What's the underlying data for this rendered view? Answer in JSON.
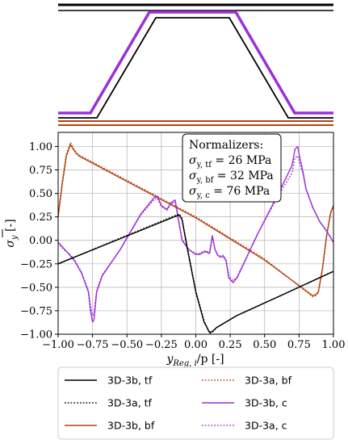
{
  "colors": {
    "tf": "#000000",
    "bf": "#b7410e",
    "c": "#9b30d9",
    "grid": "#b0b0b0"
  },
  "profile": {
    "lines": [
      "tf",
      "bf",
      "c"
    ]
  },
  "normalizers": {
    "title": "Normalizers:",
    "lines": [
      {
        "var": "σ",
        "sub": "y, tf",
        "value": " = 26 MPa"
      },
      {
        "var": "σ",
        "sub": "y, bf",
        "value": " = 32 MPa"
      },
      {
        "var": "σ",
        "sub": "y, c",
        "value": " = 76 MPa"
      }
    ]
  },
  "chart_data": {
    "type": "line",
    "xlabel": {
      "main": "y",
      "sub": "Reg, i",
      "tail": "/p [-]"
    },
    "ylabel": {
      "main": "σ",
      "sub": "y",
      "tail": " [-]"
    },
    "xlim": [
      -1.0,
      1.0
    ],
    "ylim": [
      -1.0,
      1.15
    ],
    "xticks": [
      "−1.00",
      "−0.75",
      "−0.50",
      "−0.25",
      "0.00",
      "0.25",
      "0.50",
      "0.75",
      "1.00"
    ],
    "xtick_values": [
      -1.0,
      -0.75,
      -0.5,
      -0.25,
      0.0,
      0.25,
      0.5,
      0.75,
      1.0
    ],
    "yticks": [
      "1.00",
      "0.75",
      "0.50",
      "0.25",
      "0.00",
      "−0.25",
      "−0.50",
      "−0.75",
      "−1.00"
    ],
    "ytick_values": [
      1.0,
      0.75,
      0.5,
      0.25,
      0.0,
      -0.25,
      -0.5,
      -0.75,
      -1.0
    ],
    "grid": true,
    "legend_position": "bottom",
    "series": [
      {
        "name": "3D-3b, tf",
        "color": "tf",
        "dash": "solid",
        "x": [
          -1.0,
          -0.14,
          -0.12,
          -0.1,
          -0.06,
          0.0,
          0.06,
          0.1,
          0.12,
          0.15,
          0.3,
          0.6,
          1.0
        ],
        "y": [
          -0.25,
          0.26,
          0.27,
          0.22,
          -0.1,
          -0.55,
          -0.87,
          -0.98,
          -0.97,
          -0.93,
          -0.8,
          -0.6,
          -0.33
        ]
      },
      {
        "name": "3D-3a, tf",
        "color": "tf",
        "dash": "dotted",
        "x": [
          -1.0,
          -0.14,
          -0.12,
          -0.1,
          -0.06,
          0.0,
          0.06,
          0.1,
          0.12,
          0.15,
          0.3,
          0.6,
          1.0
        ],
        "y": [
          -0.25,
          0.27,
          0.28,
          0.23,
          -0.09,
          -0.54,
          -0.86,
          -0.99,
          -0.98,
          -0.93,
          -0.8,
          -0.6,
          -0.33
        ]
      },
      {
        "name": "3D-3b, bf",
        "color": "bf",
        "dash": "solid",
        "x": [
          -1.0,
          -0.97,
          -0.94,
          -0.91,
          -0.89,
          -0.87,
          -0.85,
          0.0,
          0.5,
          0.85,
          0.87,
          0.89,
          0.92,
          0.95,
          0.98,
          1.0
        ],
        "y": [
          0.25,
          0.6,
          0.9,
          1.02,
          0.97,
          0.93,
          0.9,
          0.24,
          -0.21,
          -0.59,
          -0.58,
          -0.55,
          -0.3,
          0.05,
          0.3,
          0.37
        ]
      },
      {
        "name": "3D-3a, bf",
        "color": "bf",
        "dash": "dotted",
        "x": [
          -1.0,
          -0.97,
          -0.94,
          -0.91,
          -0.89,
          -0.87,
          -0.85,
          0.0,
          0.5,
          0.85,
          0.87,
          0.89,
          0.92,
          0.95,
          0.98,
          1.0
        ],
        "y": [
          0.27,
          0.62,
          0.92,
          1.04,
          0.98,
          0.94,
          0.91,
          0.25,
          -0.2,
          -0.6,
          -0.59,
          -0.56,
          -0.31,
          0.04,
          0.29,
          0.37
        ]
      },
      {
        "name": "3D-3b, c",
        "color": "c",
        "dash": "solid",
        "x": [
          -1.0,
          -0.95,
          -0.92,
          -0.88,
          -0.83,
          -0.78,
          -0.765,
          -0.75,
          -0.74,
          -0.72,
          -0.68,
          -0.55,
          -0.4,
          -0.3,
          -0.28,
          -0.25,
          -0.21,
          -0.18,
          -0.15,
          -0.1,
          -0.05,
          0.0,
          0.03,
          0.05,
          0.07,
          0.1,
          0.11,
          0.12,
          0.14,
          0.16,
          0.18,
          0.2,
          0.22,
          0.24,
          0.27,
          0.3,
          0.45,
          0.6,
          0.7,
          0.72,
          0.74,
          0.76,
          0.78,
          0.8,
          0.85,
          0.9,
          0.95,
          1.0
        ],
        "y": [
          -0.02,
          -0.1,
          -0.15,
          -0.22,
          -0.35,
          -0.55,
          -0.75,
          -0.87,
          -0.85,
          -0.55,
          -0.38,
          -0.1,
          0.28,
          0.46,
          0.47,
          0.37,
          0.33,
          0.4,
          0.43,
          0.0,
          -0.1,
          -0.15,
          -0.15,
          -0.13,
          -0.12,
          -0.14,
          -0.05,
          0.05,
          -0.1,
          -0.16,
          -0.18,
          -0.17,
          -0.22,
          -0.4,
          -0.45,
          -0.4,
          0.07,
          0.5,
          0.8,
          0.97,
          1.0,
          0.85,
          0.72,
          0.55,
          0.35,
          0.2,
          0.1,
          -0.02
        ]
      },
      {
        "name": "3D-3a, c",
        "color": "c",
        "dash": "dotted",
        "x": [
          -1.0,
          -0.95,
          -0.92,
          -0.88,
          -0.83,
          -0.78,
          -0.765,
          -0.75,
          -0.74,
          -0.72,
          -0.68,
          -0.55,
          -0.4,
          -0.3,
          -0.28,
          -0.25,
          -0.21,
          -0.18,
          -0.15,
          -0.1,
          -0.05,
          0.0,
          0.03,
          0.05,
          0.07,
          0.1,
          0.11,
          0.12,
          0.14,
          0.16,
          0.18,
          0.2,
          0.22,
          0.24,
          0.27,
          0.3,
          0.45,
          0.6,
          0.7,
          0.72,
          0.74,
          0.76,
          0.78,
          0.8,
          0.85,
          0.9,
          0.95,
          1.0
        ],
        "y": [
          -0.03,
          -0.11,
          -0.14,
          -0.21,
          -0.34,
          -0.54,
          -0.7,
          -0.8,
          -0.79,
          -0.53,
          -0.37,
          -0.1,
          0.27,
          0.44,
          0.45,
          0.36,
          0.32,
          0.39,
          0.41,
          0.01,
          -0.1,
          -0.14,
          -0.14,
          -0.12,
          -0.11,
          -0.13,
          -0.04,
          0.04,
          -0.1,
          -0.15,
          -0.17,
          -0.16,
          -0.21,
          -0.38,
          -0.43,
          -0.39,
          0.07,
          0.48,
          0.72,
          0.88,
          0.9,
          0.8,
          0.7,
          0.55,
          0.35,
          0.2,
          0.1,
          -0.02
        ]
      }
    ]
  }
}
